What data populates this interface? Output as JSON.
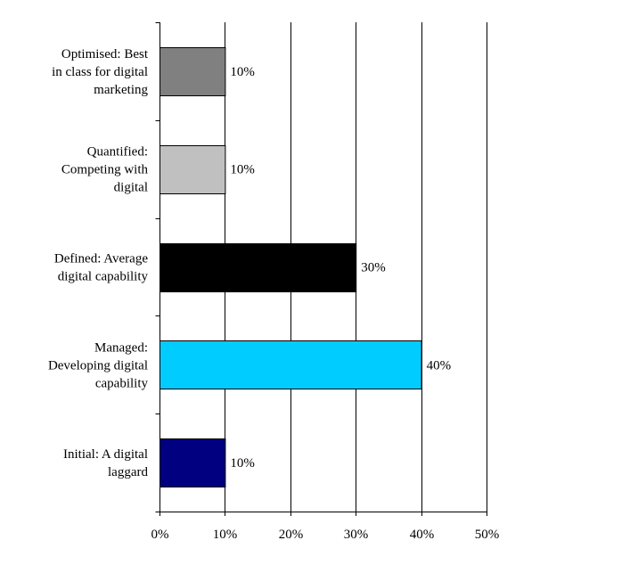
{
  "chart_data": {
    "type": "bar",
    "orientation": "horizontal",
    "categories": [
      {
        "lines": [
          "Optimised: Best",
          "in class for digital",
          "marketing"
        ]
      },
      {
        "lines": [
          "Quantified:",
          "Competing with",
          "digital"
        ]
      },
      {
        "lines": [
          "Defined: Average",
          "digital capability"
        ]
      },
      {
        "lines": [
          "Managed:",
          "Developing digital",
          "capability"
        ]
      },
      {
        "lines": [
          "Initial: A digital",
          "laggard"
        ]
      }
    ],
    "values": [
      10,
      10,
      30,
      40,
      10
    ],
    "data_labels": [
      "10%",
      "10%",
      "30%",
      "40%",
      "10%"
    ],
    "colors": [
      "#808080",
      "#c0c0c0",
      "#000000",
      "#00ccff",
      "#000080"
    ],
    "xlim": [
      0,
      50
    ],
    "x_ticks": [
      0,
      10,
      20,
      30,
      40,
      50
    ],
    "x_tick_labels": [
      "0%",
      "10%",
      "20%",
      "30%",
      "40%",
      "50%"
    ],
    "grid": "vertical",
    "legend": "none",
    "title": "",
    "xlabel": "",
    "ylabel": ""
  }
}
